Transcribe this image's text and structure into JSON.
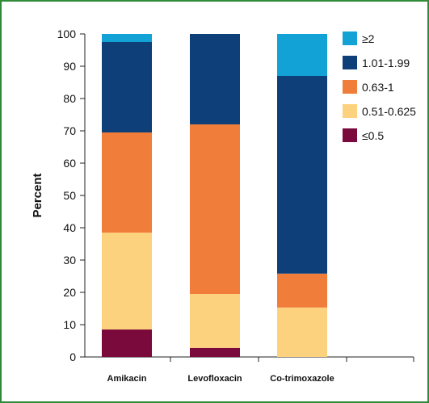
{
  "chart_data": {
    "type": "bar",
    "stacked": true,
    "categories": [
      "Amikacin",
      "Levofloxacin",
      "Co-trimoxazole"
    ],
    "ylabel": "Percent",
    "ylim": [
      0,
      100
    ],
    "yticks": [
      0,
      10,
      20,
      30,
      40,
      50,
      60,
      70,
      80,
      90,
      100
    ],
    "legend_position": "top-right",
    "series": [
      {
        "name": "≤0.5",
        "color": "#7b0a3c",
        "values": [
          8.5,
          2.8,
          0
        ]
      },
      {
        "name": "0.51-0.625",
        "color": "#fdd27e",
        "values": [
          30.0,
          16.7,
          15.3
        ]
      },
      {
        "name": "0.63-1",
        "color": "#f07d3a",
        "values": [
          31.0,
          52.5,
          10.5
        ]
      },
      {
        "name": "1.01-1.99",
        "color": "#0f3f78",
        "values": [
          28.0,
          28.0,
          61.2
        ]
      },
      {
        "name": "≥2",
        "color": "#13a2d6",
        "values": [
          2.5,
          0,
          13.0
        ]
      }
    ],
    "legend_order": [
      "≥2",
      "1.01-1.99",
      "0.63-1",
      "0.51-0.625",
      "≤0.5"
    ]
  }
}
